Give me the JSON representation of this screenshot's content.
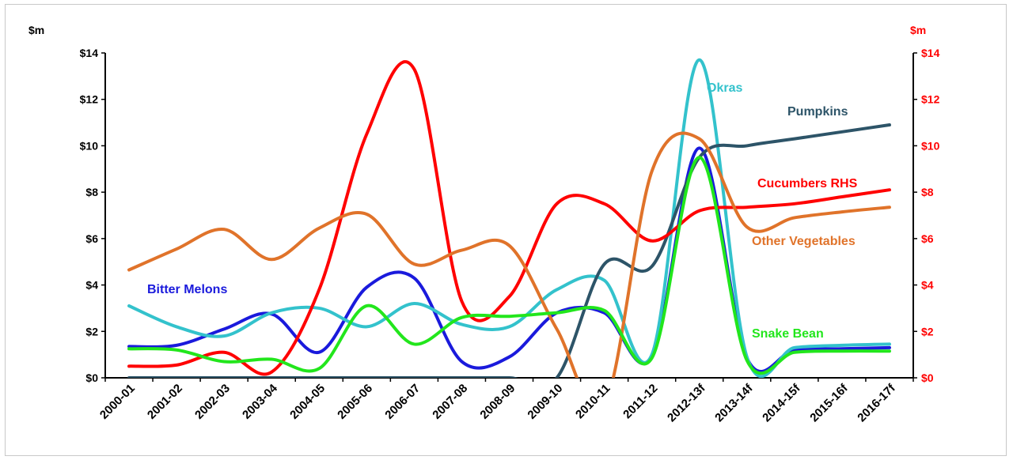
{
  "chart_data": {
    "type": "line",
    "left_axis": {
      "unit_label": "$m",
      "ticks": [
        "$0",
        "$2",
        "$4",
        "$6",
        "$8",
        "$10",
        "$12",
        "$14"
      ],
      "ylim": [
        0,
        14
      ],
      "color": "#000000"
    },
    "right_axis": {
      "unit_label": "$m",
      "ticks": [
        "$0",
        "$2",
        "$4",
        "$6",
        "$8",
        "$10",
        "$12",
        "$14"
      ],
      "ylim": [
        0,
        14
      ],
      "color": "#ff0000"
    },
    "categories": [
      "2000-01",
      "2001-02",
      "2002-03",
      "2003-04",
      "2004-05",
      "2005-06",
      "2006-07",
      "2007-08",
      "2008-09",
      "2009-10",
      "2010-11",
      "2011-12",
      "2012-13f",
      "2013-14f",
      "2014-15f",
      "2015-16f",
      "2016-17f"
    ],
    "grid": false,
    "series": [
      {
        "name": "Bitter Melons",
        "color": "#1a1adc",
        "values": [
          1.35,
          1.4,
          2.1,
          2.75,
          1.1,
          3.9,
          4.3,
          0.7,
          0.9,
          2.8,
          2.8,
          0.9,
          9.9,
          0.85,
          1.2,
          1.25,
          1.3
        ]
      },
      {
        "name": "Okras",
        "color": "#33c2cc",
        "values": [
          3.1,
          2.2,
          1.8,
          2.8,
          3.0,
          2.2,
          3.2,
          2.3,
          2.2,
          3.8,
          4.2,
          1.0,
          13.7,
          0.9,
          1.3,
          1.4,
          1.45
        ]
      },
      {
        "name": "Pumpkins",
        "color": "#2d5468",
        "values": [
          0,
          0,
          0,
          0,
          0,
          0,
          0,
          0,
          0,
          0,
          4.9,
          4.8,
          9.5,
          10.0,
          10.3,
          10.6,
          10.9
        ]
      },
      {
        "name": "Cucumbers RHS",
        "color": "#ff0000",
        "values": [
          0.5,
          0.55,
          1.1,
          0.25,
          3.8,
          10.5,
          13.3,
          3.3,
          3.5,
          7.5,
          7.5,
          5.9,
          7.2,
          7.35,
          7.5,
          7.8,
          8.1
        ]
      },
      {
        "name": "Other Vegetables",
        "color": "#e0732a",
        "values": [
          4.65,
          5.55,
          6.4,
          5.1,
          6.45,
          7.05,
          4.9,
          5.5,
          5.7,
          2.1,
          -1.2,
          8.9,
          10.3,
          6.5,
          6.9,
          7.15,
          7.35
        ]
      },
      {
        "name": "Snake Bean",
        "color": "#22e61c",
        "values": [
          1.25,
          1.2,
          0.7,
          0.8,
          0.4,
          3.1,
          1.45,
          2.6,
          2.65,
          2.8,
          2.9,
          0.85,
          9.5,
          0.75,
          1.1,
          1.15,
          1.15
        ]
      }
    ]
  }
}
